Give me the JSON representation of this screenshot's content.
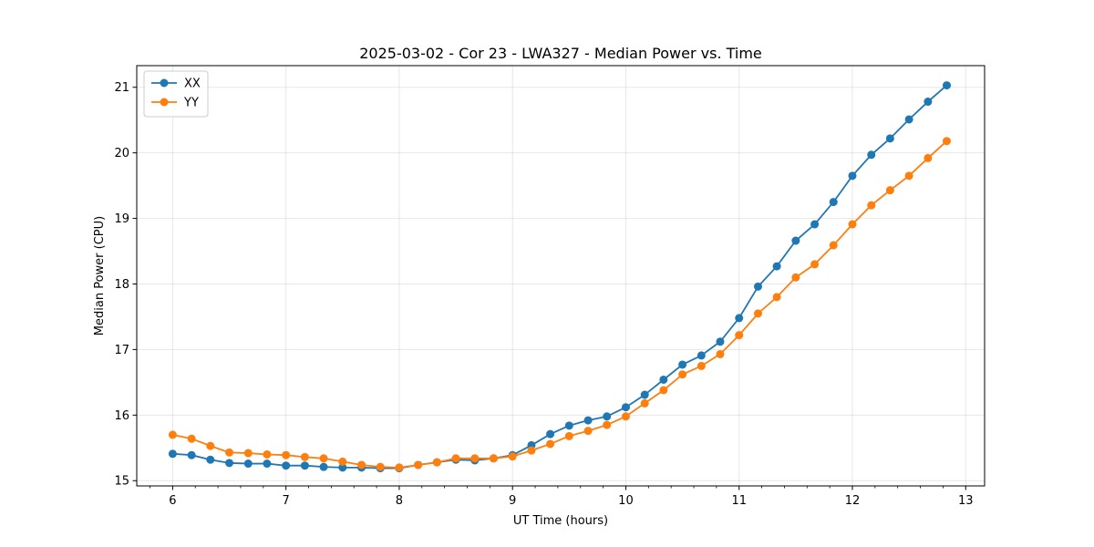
{
  "chart_data": {
    "type": "line",
    "title": "2025-03-02 - Cor 23 - LWA327 - Median Power vs. Time",
    "xlabel": "UT Time (hours)",
    "ylabel": "Median Power (CPU)",
    "xlim": [
      5.683,
      13.167
    ],
    "ylim": [
      14.92,
      21.33
    ],
    "xticks": [
      6,
      7,
      8,
      9,
      10,
      11,
      12,
      13
    ],
    "yticks": [
      15,
      16,
      17,
      18,
      19,
      20,
      21
    ],
    "x_minor_step": 0.2,
    "grid": true,
    "legend_position": "top-left",
    "x": [
      6.0,
      6.167,
      6.333,
      6.5,
      6.667,
      6.833,
      7.0,
      7.167,
      7.333,
      7.5,
      7.667,
      7.833,
      8.0,
      8.167,
      8.333,
      8.5,
      8.667,
      8.833,
      9.0,
      9.167,
      9.333,
      9.5,
      9.667,
      9.833,
      10.0,
      10.167,
      10.333,
      10.5,
      10.667,
      10.833,
      11.0,
      11.167,
      11.333,
      11.5,
      11.667,
      11.833,
      12.0,
      12.167,
      12.333,
      12.5,
      12.667,
      12.833
    ],
    "series": [
      {
        "name": "XX",
        "color": "#1f77b4",
        "values": [
          15.41,
          15.39,
          15.32,
          15.27,
          15.26,
          15.26,
          15.23,
          15.23,
          15.21,
          15.2,
          15.2,
          15.19,
          15.19,
          15.24,
          15.28,
          15.32,
          15.31,
          15.34,
          15.39,
          15.54,
          15.71,
          15.84,
          15.92,
          15.98,
          16.12,
          16.31,
          16.54,
          16.77,
          16.91,
          17.12,
          17.48,
          17.96,
          18.27,
          18.66,
          18.91,
          19.25,
          19.65,
          19.97,
          20.22,
          20.51,
          20.78,
          21.03
        ]
      },
      {
        "name": "YY",
        "color": "#ff7f0e",
        "values": [
          15.7,
          15.64,
          15.53,
          15.43,
          15.42,
          15.4,
          15.39,
          15.36,
          15.34,
          15.29,
          15.24,
          15.21,
          15.2,
          15.24,
          15.28,
          15.34,
          15.34,
          15.34,
          15.37,
          15.46,
          15.56,
          15.68,
          15.76,
          15.85,
          15.98,
          16.18,
          16.38,
          16.62,
          16.75,
          16.93,
          17.22,
          17.55,
          17.8,
          18.1,
          18.3,
          18.59,
          18.91,
          19.2,
          19.43,
          19.65,
          19.92,
          20.18
        ]
      }
    ]
  }
}
